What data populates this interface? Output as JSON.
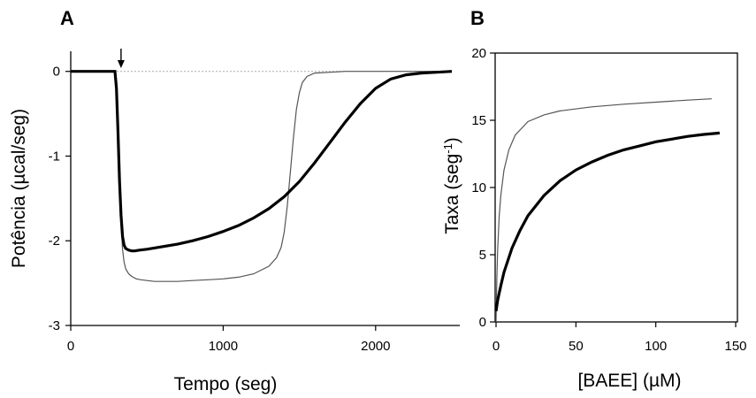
{
  "chart_data": [
    {
      "panel": "A",
      "type": "line",
      "title": "",
      "xlabel": "Tempo (seg)",
      "ylabel": "Potência (µcal/seg)",
      "xlim": [
        0,
        2500
      ],
      "ylim": [
        -3,
        0.3
      ],
      "x_ticks": [
        0,
        1000,
        2000
      ],
      "y_ticks": [
        0,
        -1,
        -2,
        -3
      ],
      "x_tick_labels": [
        "0",
        "1000",
        "2000"
      ],
      "y_tick_labels": [
        "0",
        "-1",
        "-2",
        "-3"
      ],
      "grid": false,
      "legend": "none",
      "annotation_arrow_x": 330,
      "baseline_y": 0,
      "series": [
        {
          "style": "thin",
          "color": "#555555",
          "x": [
            0,
            290,
            300,
            310,
            320,
            330,
            340,
            350,
            360,
            380,
            400,
            430,
            460,
            500,
            550,
            600,
            700,
            800,
            900,
            1000,
            1100,
            1200,
            1300,
            1350,
            1380,
            1400,
            1420,
            1440,
            1460,
            1480,
            1500,
            1520,
            1550,
            1600,
            1700,
            1800,
            2000,
            2200,
            2500
          ],
          "y": [
            0,
            0,
            -0.2,
            -0.7,
            -1.3,
            -1.8,
            -2.1,
            -2.25,
            -2.33,
            -2.39,
            -2.42,
            -2.45,
            -2.46,
            -2.47,
            -2.48,
            -2.48,
            -2.48,
            -2.47,
            -2.46,
            -2.45,
            -2.43,
            -2.39,
            -2.3,
            -2.2,
            -2.08,
            -1.9,
            -1.6,
            -1.2,
            -0.8,
            -0.45,
            -0.25,
            -0.13,
            -0.06,
            -0.02,
            -0.01,
            0,
            0,
            0,
            0
          ]
        },
        {
          "style": "thick",
          "color": "#000000",
          "x": [
            0,
            290,
            300,
            310,
            320,
            330,
            340,
            350,
            360,
            380,
            400,
            420,
            450,
            500,
            600,
            700,
            800,
            900,
            1000,
            1100,
            1200,
            1300,
            1400,
            1500,
            1600,
            1700,
            1800,
            1900,
            2000,
            2100,
            2200,
            2300,
            2400,
            2500
          ],
          "y": [
            0,
            0,
            -0.2,
            -0.7,
            -1.3,
            -1.7,
            -1.95,
            -2.05,
            -2.09,
            -2.11,
            -2.12,
            -2.12,
            -2.11,
            -2.1,
            -2.07,
            -2.04,
            -2.0,
            -1.95,
            -1.89,
            -1.82,
            -1.73,
            -1.62,
            -1.48,
            -1.3,
            -1.08,
            -0.84,
            -0.6,
            -0.38,
            -0.2,
            -0.09,
            -0.04,
            -0.02,
            -0.01,
            0
          ]
        }
      ]
    },
    {
      "panel": "B",
      "type": "line",
      "title": "",
      "xlabel": "[BAEE] (µM)",
      "ylabel": "Taxa (seg⁻¹)",
      "xlim": [
        0,
        150
      ],
      "ylim": [
        0,
        20
      ],
      "x_ticks": [
        0,
        50,
        100,
        150
      ],
      "y_ticks": [
        0,
        5,
        10,
        15,
        20
      ],
      "x_tick_labels": [
        "0",
        "50",
        "100",
        "150"
      ],
      "y_tick_labels": [
        "0",
        "5",
        "10",
        "15",
        "20"
      ],
      "grid": false,
      "legend": "none",
      "series": [
        {
          "style": "thin",
          "color": "#555555",
          "x": [
            0,
            0.5,
            1,
            2,
            3,
            5,
            8,
            12,
            20,
            30,
            40,
            60,
            80,
            100,
            120,
            135
          ],
          "y": [
            0,
            3.2,
            5.3,
            7.9,
            9.4,
            11.3,
            12.8,
            13.9,
            14.9,
            15.4,
            15.7,
            16.0,
            16.2,
            16.35,
            16.5,
            16.6
          ]
        },
        {
          "style": "thick",
          "color": "#000000",
          "x": [
            0,
            1,
            3,
            5,
            10,
            15,
            20,
            30,
            40,
            50,
            60,
            70,
            80,
            90,
            100,
            110,
            120,
            130,
            140
          ],
          "y": [
            0.8,
            1.6,
            2.7,
            3.7,
            5.5,
            6.8,
            7.9,
            9.4,
            10.5,
            11.3,
            11.9,
            12.4,
            12.8,
            13.1,
            13.4,
            13.6,
            13.8,
            13.95,
            14.05
          ]
        }
      ]
    }
  ],
  "labels": {
    "panel_a": "A",
    "panel_b": "B",
    "a_xlabel": "Tempo (seg)",
    "a_ylabel": "Potência (µcal/seg)",
    "b_xlabel": "[BAEE] (µM)",
    "b_ylabel_main": "Taxa (seg",
    "b_ylabel_sup": "-1",
    "b_ylabel_close": ")"
  }
}
